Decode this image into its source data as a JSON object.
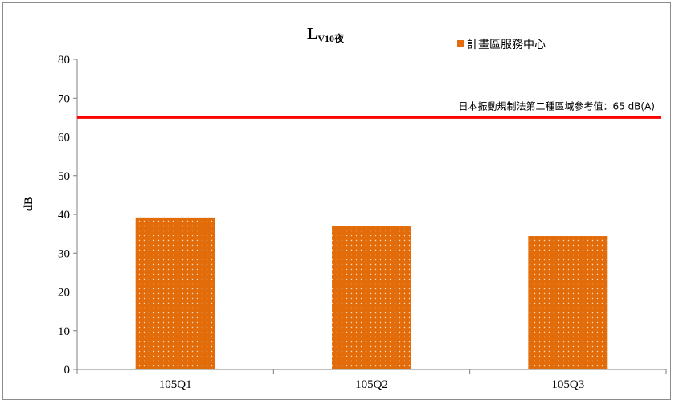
{
  "chart_data": {
    "type": "bar",
    "title_main": "L",
    "title_sub": "V10夜",
    "ylabel": "dB",
    "xlabel": "",
    "categories": [
      "105Q1",
      "105Q2",
      "105Q3"
    ],
    "series": [
      {
        "name": "計畫區服務中心",
        "values": [
          39.2,
          37.0,
          34.4
        ],
        "color": "#e36c0a"
      }
    ],
    "ylim": [
      0,
      80
    ],
    "yticks": [
      0,
      10,
      20,
      30,
      40,
      50,
      60,
      70,
      80
    ],
    "reference_line": {
      "value": 65,
      "label": "日本振動規制法第二種區域參考值：65 dB(A)",
      "color": "#ff0000"
    },
    "legend_position": "top-right",
    "grid": false
  }
}
